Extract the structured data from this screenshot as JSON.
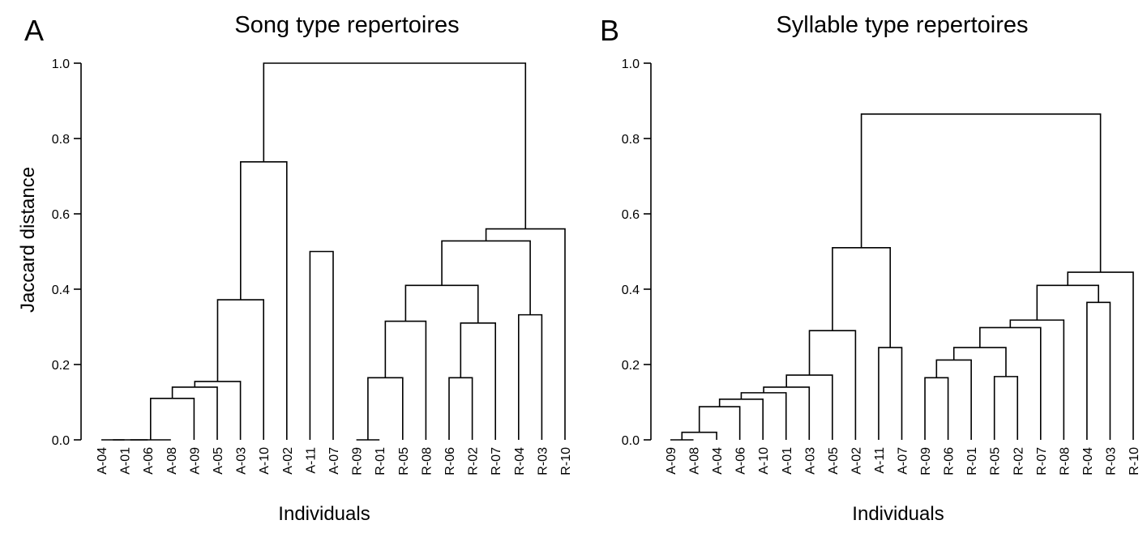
{
  "panels": [
    {
      "letter": "A",
      "title": "Song type repertoires",
      "ylabel": "Jaccard distance",
      "xlabel": "Individuals",
      "yticks": [
        "0.0",
        "0.2",
        "0.4",
        "0.6",
        "0.8",
        "1.0"
      ]
    },
    {
      "letter": "B",
      "title": "Syllable type repertoires",
      "ylabel": "",
      "xlabel": "Individuals",
      "yticks": [
        "0.0",
        "0.2",
        "0.4",
        "0.6",
        "0.8",
        "1.0"
      ]
    }
  ],
  "chart_data": [
    {
      "type": "dendrogram",
      "title": "Song type repertoires",
      "xlabel": "Individuals",
      "ylabel": "Jaccard distance",
      "ylim": [
        0,
        1
      ],
      "leaves": [
        "A-04",
        "A-01",
        "A-06",
        "A-08",
        "A-09",
        "A-05",
        "A-03",
        "A-10",
        "A-02",
        "A-11",
        "A-07",
        "R-09",
        "R-01",
        "R-05",
        "R-08",
        "R-06",
        "R-02",
        "R-07",
        "R-04",
        "R-03",
        "R-10"
      ],
      "merges": [
        [
          -1,
          -2,
          0.0
        ],
        [
          1,
          -3,
          0.0
        ],
        [
          2,
          -4,
          0.0
        ],
        [
          3,
          -5,
          0.11
        ],
        [
          4,
          -6,
          0.14
        ],
        [
          5,
          -7,
          0.155
        ],
        [
          6,
          -8,
          0.372
        ],
        [
          -10,
          -11,
          0.5
        ],
        [
          7,
          -9,
          0.738
        ],
        [
          -12,
          -13,
          0.0
        ],
        [
          10,
          -14,
          0.165
        ],
        [
          -16,
          -17,
          0.165
        ],
        [
          11,
          -15,
          0.315
        ],
        [
          12,
          -18,
          0.31
        ],
        [
          13,
          14,
          0.41
        ],
        [
          -19,
          -20,
          0.332
        ],
        [
          15,
          16,
          0.528
        ],
        [
          17,
          -21,
          0.56
        ],
        [
          9,
          18,
          1.0
        ]
      ]
    },
    {
      "type": "dendrogram",
      "title": "Syllable type repertoires",
      "xlabel": "Individuals",
      "ylabel": "",
      "ylim": [
        0,
        1
      ],
      "leaves": [
        "A-09",
        "A-08",
        "A-04",
        "A-06",
        "A-10",
        "A-01",
        "A-03",
        "A-05",
        "A-02",
        "A-11",
        "A-07",
        "R-09",
        "R-06",
        "R-01",
        "R-05",
        "R-02",
        "R-07",
        "R-08",
        "R-04",
        "R-03",
        "R-10"
      ],
      "merges": [
        [
          -1,
          -2,
          0.0
        ],
        [
          1,
          -3,
          0.02
        ],
        [
          2,
          -4,
          0.088
        ],
        [
          3,
          -5,
          0.108
        ],
        [
          4,
          -6,
          0.125
        ],
        [
          5,
          -7,
          0.14
        ],
        [
          6,
          -8,
          0.172
        ],
        [
          7,
          -9,
          0.29
        ],
        [
          -10,
          -11,
          0.245
        ],
        [
          8,
          9,
          0.51
        ],
        [
          -12,
          -13,
          0.165
        ],
        [
          11,
          -14,
          0.212
        ],
        [
          -15,
          -16,
          0.168
        ],
        [
          12,
          13,
          0.245
        ],
        [
          14,
          -17,
          0.298
        ],
        [
          15,
          -18,
          0.318
        ],
        [
          -19,
          -20,
          0.365
        ],
        [
          16,
          17,
          0.41
        ],
        [
          18,
          -21,
          0.445
        ],
        [
          10,
          19,
          0.865
        ]
      ]
    }
  ]
}
